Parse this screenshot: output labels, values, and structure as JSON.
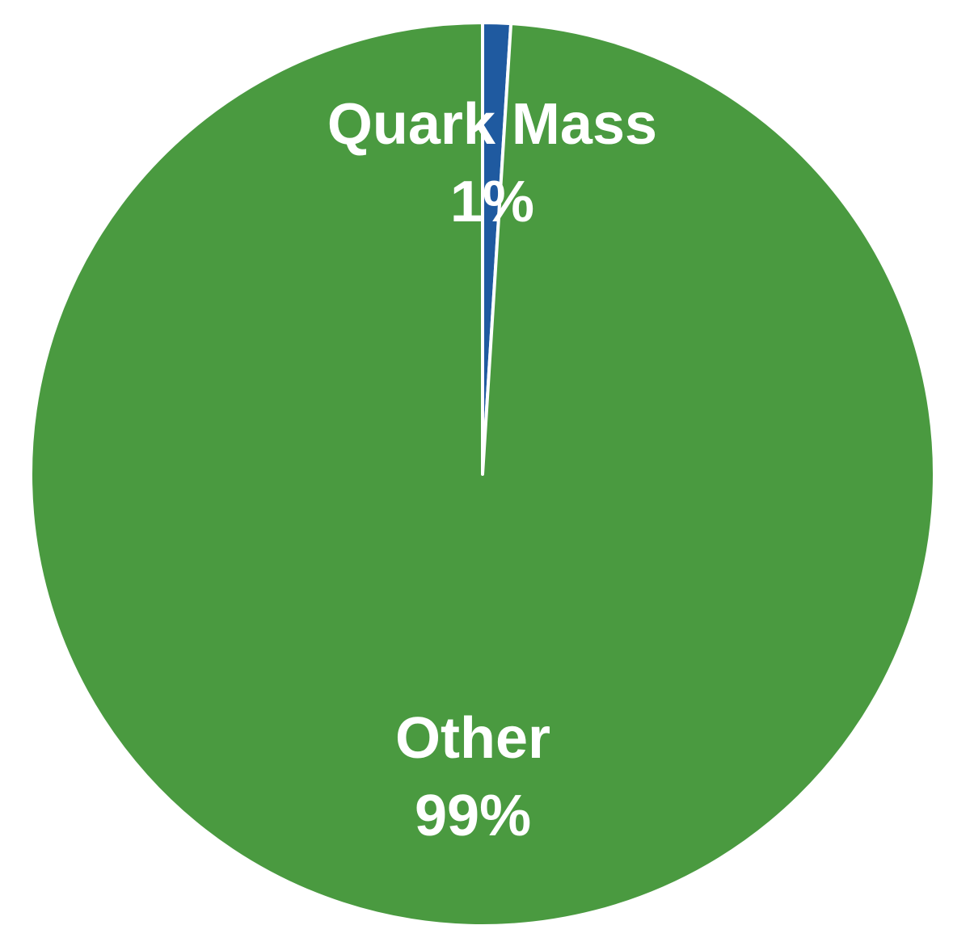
{
  "chart_data": {
    "type": "pie",
    "categories": [
      "Quark Mass",
      "Other"
    ],
    "values": [
      1,
      99
    ],
    "value_labels": [
      "1%",
      "99%"
    ],
    "colors": [
      "#1f5aa0",
      "#4a9a40"
    ]
  }
}
